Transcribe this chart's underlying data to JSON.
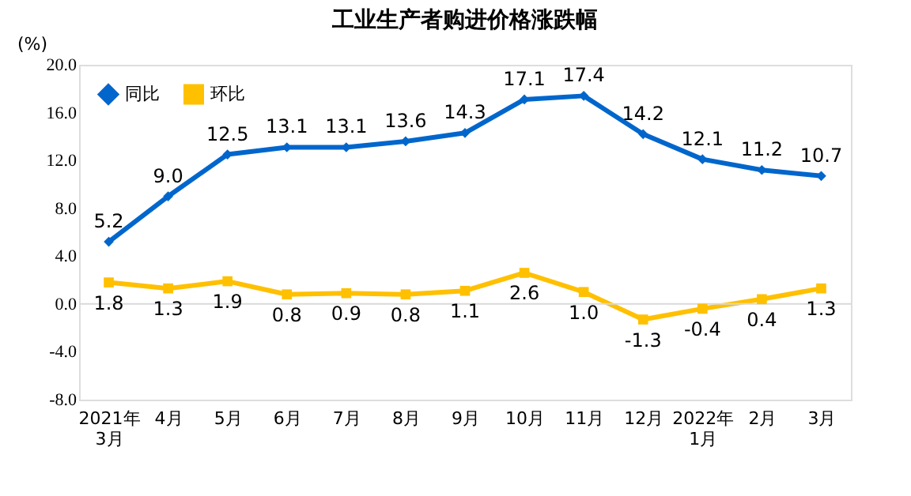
{
  "chart_data": {
    "type": "line",
    "title": "工业生产者购进价格涨跌幅",
    "ylabel": "(%)",
    "categories": [
      "2021年\n3月",
      "4月",
      "5月",
      "6月",
      "7月",
      "8月",
      "9月",
      "10月",
      "11月",
      "12月",
      "2022年\n1月",
      "2月",
      "3月"
    ],
    "series": [
      {
        "name": "同比",
        "color": "#0066cc",
        "marker": "diamond",
        "values": [
          5.2,
          9.0,
          12.5,
          13.1,
          13.1,
          13.6,
          14.3,
          17.1,
          17.4,
          14.2,
          12.1,
          11.2,
          10.7
        ],
        "value_labels": [
          "5.2",
          "9.0",
          "12.5",
          "13.1",
          "13.1",
          "13.6",
          "14.3",
          "17.1",
          "17.4",
          "14.2",
          "12.1",
          "11.2",
          "10.7"
        ]
      },
      {
        "name": "环比",
        "color": "#ffc000",
        "marker": "square",
        "values": [
          1.8,
          1.3,
          1.9,
          0.8,
          0.9,
          0.8,
          1.1,
          2.6,
          1.0,
          -1.3,
          -0.4,
          0.4,
          1.3
        ],
        "value_labels": [
          "1.8",
          "1.3",
          "1.9",
          "0.8",
          "0.9",
          "0.8",
          "1.1",
          "2.6",
          "1.0",
          "-1.3",
          "-0.4",
          "0.4",
          "1.3"
        ]
      }
    ],
    "ylim": [
      -8,
      20
    ],
    "yticks": [
      {
        "value": -8,
        "label": "-8.0"
      },
      {
        "value": -4,
        "label": "-4.0"
      },
      {
        "value": 0,
        "label": "0.0"
      },
      {
        "value": 4,
        "label": "4.0"
      },
      {
        "value": 8,
        "label": "8.0"
      },
      {
        "value": 12,
        "label": "12.0"
      },
      {
        "value": 16,
        "label": "16.0"
      },
      {
        "value": 20,
        "label": "20.0"
      }
    ],
    "ref_lines": [
      {
        "axis": "y",
        "value": 0,
        "color": "#d9d9d9"
      }
    ],
    "grid": false,
    "legend": "top left",
    "line_style": "solid"
  }
}
